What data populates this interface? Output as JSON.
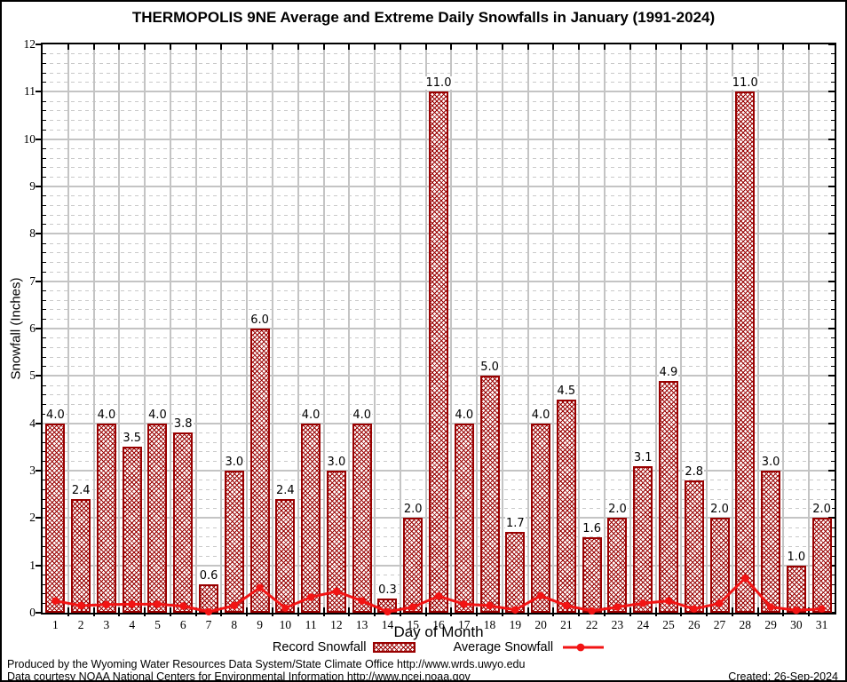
{
  "page": {
    "footer_line1": "Produced by the Wyoming Water Resources Data System/State Climate Office http://www.wrds.uwyo.edu",
    "footer_line2": "Data courtesy NOAA National Centers for Environmental Information http://www.ncei.noaa.gov",
    "created": "Created: 26-Sep-2024"
  },
  "chart_data": {
    "type": "bar",
    "title": "THERMOPOLIS 9NE Average and Extreme Daily Snowfalls in January (1991-2024)",
    "xlabel": "Day of Month",
    "ylabel": "Snowfall (Inches)",
    "ylim": [
      0,
      12
    ],
    "y_major_step": 1,
    "y_minor_step": 0.2,
    "grid": true,
    "legend_position": "bottom",
    "categories": [
      1,
      2,
      3,
      4,
      5,
      6,
      7,
      8,
      9,
      10,
      11,
      12,
      13,
      14,
      15,
      16,
      17,
      18,
      19,
      20,
      21,
      22,
      23,
      24,
      25,
      26,
      27,
      28,
      29,
      30,
      31
    ],
    "series": [
      {
        "name": "Record Snowfall",
        "type": "bar",
        "color": "#990000",
        "fill_style": "crosshatch",
        "values": [
          4.0,
          2.4,
          4.0,
          3.5,
          4.0,
          3.8,
          0.6,
          3.0,
          6.0,
          2.4,
          4.0,
          3.0,
          4.0,
          0.3,
          2.0,
          11.0,
          4.0,
          5.0,
          1.7,
          4.0,
          4.5,
          1.6,
          2.0,
          3.1,
          4.9,
          2.8,
          2.0,
          11.0,
          3.0,
          1.0,
          2.0
        ]
      },
      {
        "name": "Average Snowfall",
        "type": "line",
        "color": "#f21414",
        "marker": "circle",
        "values": [
          0.25,
          0.15,
          0.17,
          0.18,
          0.18,
          0.14,
          0.02,
          0.15,
          0.53,
          0.1,
          0.33,
          0.45,
          0.25,
          0.02,
          0.12,
          0.35,
          0.18,
          0.15,
          0.06,
          0.36,
          0.15,
          0.04,
          0.12,
          0.2,
          0.25,
          0.08,
          0.2,
          0.73,
          0.12,
          0.05,
          0.08
        ]
      }
    ],
    "colors": {
      "grid_major": "#c4c4c4",
      "grid_minor": "#c9c9c9",
      "axis": "#000000",
      "bar_outline": "#990000",
      "average_line": "#f21414"
    }
  }
}
